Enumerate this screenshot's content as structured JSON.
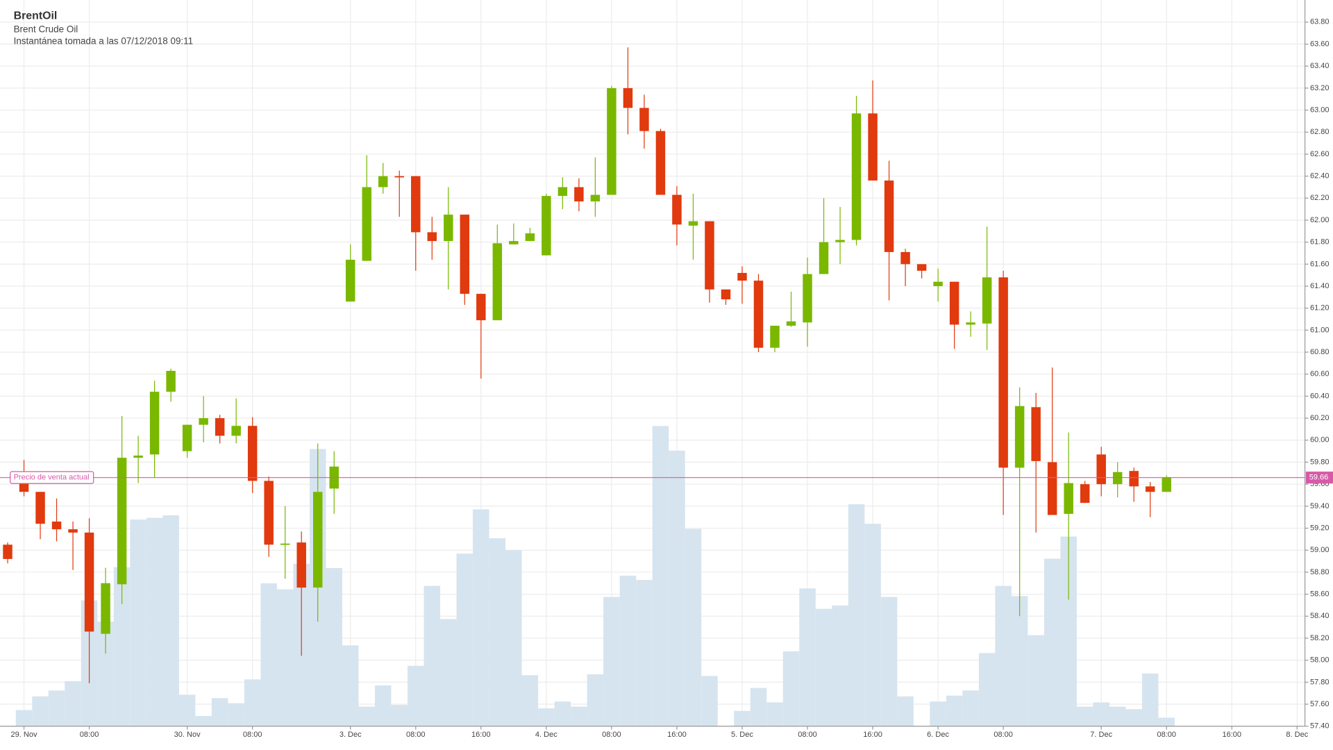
{
  "chart_data": {
    "type": "candlestick",
    "title": "BrentOil",
    "subtitle": "Brent Crude Oil",
    "snapshot": "Instantánea tomada a las 07/12/2018 09:11",
    "categories": [
      null,
      "29. Nov",
      null,
      null,
      null,
      "08:00",
      null,
      null,
      null,
      null,
      null,
      "30. Nov",
      null,
      null,
      null,
      "08:00",
      null,
      null,
      null,
      null,
      null,
      "3. Dec",
      null,
      null,
      null,
      "08:00",
      null,
      null,
      null,
      "16:00",
      null,
      null,
      null,
      "4. Dec",
      null,
      null,
      null,
      "08:00",
      null,
      null,
      null,
      "16:00",
      null,
      null,
      null,
      "5. Dec",
      null,
      null,
      null,
      "08:00",
      null,
      null,
      null,
      "16:00",
      null,
      null,
      null,
      "6. Dec",
      null,
      null,
      null,
      "08:00",
      null,
      null,
      null,
      null,
      null,
      "7. Dec",
      null,
      null,
      null,
      "08:00",
      null,
      null,
      null,
      "16:00",
      null,
      null,
      null,
      "8. Dec"
    ],
    "open": [
      59.05,
      59.61,
      59.53,
      59.26,
      59.19,
      59.16,
      58.24,
      58.69,
      59.84,
      59.87,
      60.44,
      59.9,
      60.14,
      60.2,
      60.04,
      60.13,
      59.63,
      59.05,
      59.07,
      58.66,
      59.56,
      61.26,
      61.63,
      62.3,
      62.4,
      62.4,
      61.89,
      61.81,
      62.05,
      61.33,
      61.09,
      61.78,
      61.81,
      61.68,
      62.22,
      62.3,
      62.17,
      62.23,
      63.2,
      63.02,
      62.81,
      62.23,
      61.95,
      61.99,
      61.37,
      61.52,
      61.45,
      60.84,
      61.04,
      61.07,
      61.51,
      61.8,
      61.82,
      62.97,
      62.36,
      61.71,
      61.6,
      61.4,
      61.44,
      61.05,
      61.06,
      61.48,
      59.75,
      60.3,
      59.8,
      59.33,
      59.6,
      59.87,
      59.6,
      59.72,
      59.58,
      59.53,
      null,
      null,
      null,
      null,
      null,
      null,
      null,
      null
    ],
    "high": [
      59.07,
      59.82,
      59.53,
      59.47,
      59.26,
      59.29,
      58.84,
      60.22,
      60.04,
      60.54,
      60.65,
      60.14,
      60.4,
      60.23,
      60.38,
      60.21,
      59.67,
      59.4,
      59.17,
      59.97,
      59.9,
      61.78,
      62.59,
      62.52,
      62.45,
      62.4,
      62.03,
      62.3,
      62.05,
      61.33,
      61.96,
      61.97,
      61.93,
      62.24,
      62.39,
      62.38,
      62.57,
      63.22,
      63.57,
      63.14,
      62.83,
      62.31,
      62.24,
      61.99,
      61.37,
      61.58,
      61.51,
      61.04,
      61.35,
      61.66,
      62.2,
      62.12,
      63.13,
      63.27,
      62.54,
      61.74,
      61.6,
      61.56,
      61.44,
      61.17,
      61.94,
      61.54,
      60.48,
      60.43,
      60.66,
      60.07,
      59.63,
      59.94,
      59.8,
      59.75,
      59.62,
      59.68,
      null,
      null,
      null,
      null,
      null,
      null,
      null,
      null
    ],
    "low": [
      58.88,
      59.49,
      59.1,
      59.08,
      58.82,
      57.79,
      58.06,
      58.51,
      59.61,
      59.66,
      60.35,
      59.84,
      59.98,
      59.97,
      59.97,
      59.52,
      58.94,
      58.74,
      58.04,
      58.35,
      59.33,
      61.26,
      61.63,
      62.24,
      62.03,
      61.54,
      61.64,
      61.37,
      61.23,
      60.56,
      61.09,
      61.78,
      61.81,
      61.68,
      62.1,
      62.08,
      62.03,
      62.23,
      62.78,
      62.65,
      62.23,
      61.77,
      61.64,
      61.25,
      61.23,
      61.24,
      60.8,
      60.8,
      61.03,
      60.85,
      61.51,
      61.6,
      61.77,
      62.36,
      61.27,
      61.4,
      61.47,
      61.26,
      60.83,
      60.94,
      60.82,
      59.32,
      58.4,
      59.16,
      59.32,
      58.55,
      59.43,
      59.49,
      59.48,
      59.44,
      59.3,
      59.53,
      null,
      null,
      null,
      null,
      null,
      null,
      null,
      null
    ],
    "close": [
      58.92,
      59.53,
      59.24,
      59.19,
      59.16,
      58.26,
      58.7,
      59.84,
      59.86,
      60.44,
      60.63,
      60.14,
      60.2,
      60.04,
      60.13,
      59.63,
      59.05,
      59.06,
      58.66,
      59.53,
      59.76,
      61.64,
      62.3,
      62.4,
      62.39,
      61.89,
      61.81,
      62.05,
      61.33,
      61.09,
      61.79,
      61.81,
      61.88,
      62.22,
      62.3,
      62.17,
      62.23,
      63.2,
      63.02,
      62.81,
      62.23,
      61.96,
      61.99,
      61.37,
      61.28,
      61.45,
      60.84,
      61.04,
      61.08,
      61.51,
      61.8,
      61.82,
      62.97,
      62.36,
      61.71,
      61.6,
      61.54,
      61.44,
      61.05,
      61.07,
      61.48,
      59.75,
      60.31,
      59.81,
      59.32,
      59.61,
      59.43,
      59.6,
      59.71,
      59.58,
      59.53,
      59.66,
      null,
      null,
      null,
      null,
      null,
      null,
      null,
      null
    ],
    "volume": [
      0,
      19,
      35,
      42,
      53,
      148,
      123,
      187,
      243,
      245,
      248,
      37,
      12,
      33,
      27,
      55,
      168,
      161,
      191,
      326,
      186,
      95,
      23,
      48,
      25,
      71,
      165,
      126,
      203,
      255,
      221,
      207,
      60,
      21,
      29,
      23,
      61,
      152,
      177,
      172,
      353,
      324,
      232,
      59,
      0,
      18,
      45,
      28,
      88,
      162,
      138,
      142,
      261,
      238,
      152,
      35,
      0,
      29,
      36,
      42,
      86,
      165,
      153,
      107,
      197,
      223,
      23,
      28,
      23,
      20,
      62,
      10,
      null,
      null,
      null,
      null,
      null,
      null,
      null,
      null
    ],
    "up_color": "#7ab800",
    "down_color": "#e03a0e",
    "volume_color": "#d6e4ef",
    "volume_lim": [
      0,
      828
    ],
    "current_price": 59.66,
    "current_price_label": "Precio de venta actual",
    "current_price_color": "#d65aa8",
    "ylim": [
      57.4,
      63.8
    ],
    "yticks": [
      {
        "value": 57.4,
        "label": "57.40"
      },
      {
        "value": 57.6,
        "label": "57.60"
      },
      {
        "value": 57.8,
        "label": "57.80"
      },
      {
        "value": 58,
        "label": "58.00"
      },
      {
        "value": 58.2,
        "label": "58.20"
      },
      {
        "value": 58.4,
        "label": "58.40"
      },
      {
        "value": 58.6,
        "label": "58.60"
      },
      {
        "value": 58.8,
        "label": "58.80"
      },
      {
        "value": 59,
        "label": "59.00"
      },
      {
        "value": 59.2,
        "label": "59.20"
      },
      {
        "value": 59.4,
        "label": "59.40"
      },
      {
        "value": 59.6,
        "label": "59.60"
      },
      {
        "value": 59.8,
        "label": "59.80"
      },
      {
        "value": 60,
        "label": "60.00"
      },
      {
        "value": 60.2,
        "label": "60.20"
      },
      {
        "value": 60.4,
        "label": "60.40"
      },
      {
        "value": 60.6,
        "label": "60.60"
      },
      {
        "value": 60.8,
        "label": "60.80"
      },
      {
        "value": 61,
        "label": "61.00"
      },
      {
        "value": 61.2,
        "label": "61.20"
      },
      {
        "value": 61.4,
        "label": "61.40"
      },
      {
        "value": 61.6,
        "label": "61.60"
      },
      {
        "value": 61.8,
        "label": "61.80"
      },
      {
        "value": 62,
        "label": "62.00"
      },
      {
        "value": 62.2,
        "label": "62.20"
      },
      {
        "value": 62.4,
        "label": "62.40"
      },
      {
        "value": 62.6,
        "label": "62.60"
      },
      {
        "value": 62.8,
        "label": "62.80"
      },
      {
        "value": 63,
        "label": "63.00"
      },
      {
        "value": 63.2,
        "label": "63.20"
      },
      {
        "value": 63.4,
        "label": "63.40"
      },
      {
        "value": 63.6,
        "label": "63.60"
      },
      {
        "value": 63.8,
        "label": "63.80"
      }
    ],
    "grid": true
  }
}
